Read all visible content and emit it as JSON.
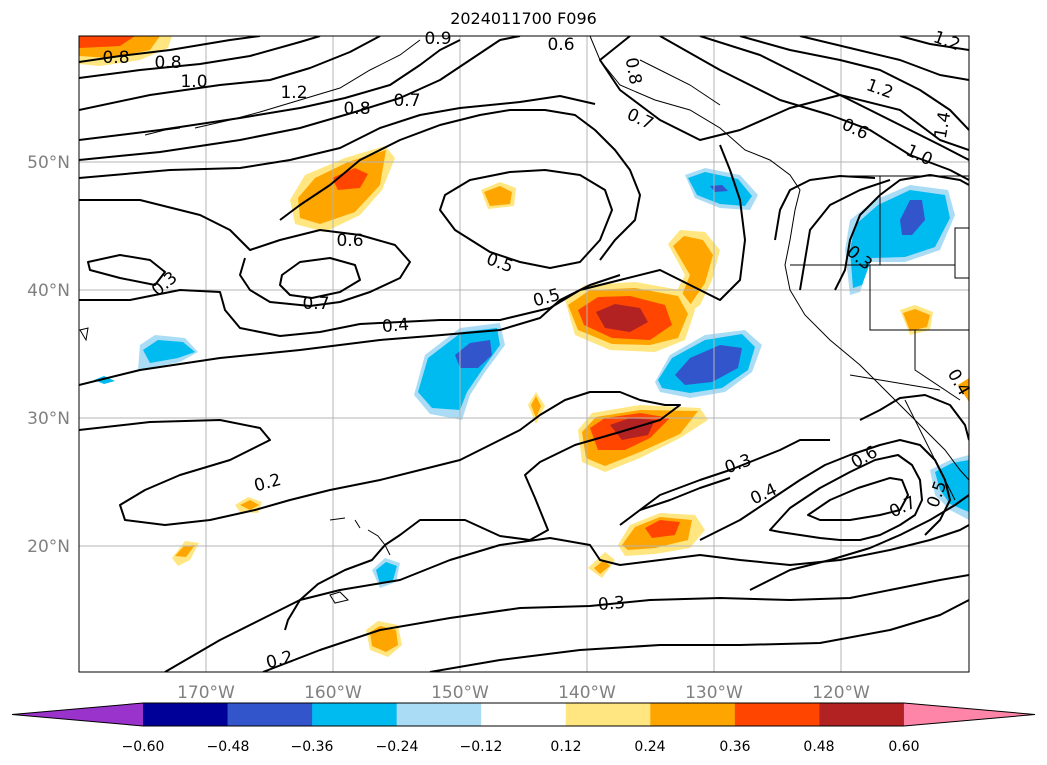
{
  "title": "2024011700 F096",
  "map": {
    "lat_labels": [
      "50°N",
      "40°N",
      "30°N",
      "20°N"
    ],
    "lon_labels": [
      "170°W",
      "160°W",
      "150°W",
      "140°W",
      "130°W",
      "120°W"
    ],
    "contour_labels": [
      "0.8",
      "0.8",
      "1.0",
      "1.2",
      "0.8",
      "0.7",
      "0.6",
      "0.9",
      "0.8",
      "0.7",
      "1.2",
      "0.6",
      "1.0",
      "1.4",
      "1.2",
      "0.6",
      "0.5",
      "0.3",
      "0.7",
      "0.5",
      "0.4",
      "0.3",
      "0.4",
      "0.6",
      "0.7",
      "0.2",
      "0.3",
      "0.2",
      "0.3",
      "0.5",
      "0.4"
    ]
  },
  "colorbar": {
    "ticks": [
      "−0.60",
      "−0.48",
      "−0.36",
      "−0.24",
      "−0.12",
      "0.12",
      "0.24",
      "0.36",
      "0.48",
      "0.60"
    ],
    "colors": [
      "#9933cc",
      "#000099",
      "#3355cc",
      "#00bbf0",
      "#aaddf5",
      "#ffffff",
      "#ffe680",
      "#ffa500",
      "#ff4500",
      "#b22222",
      "#ff85a8"
    ]
  }
}
